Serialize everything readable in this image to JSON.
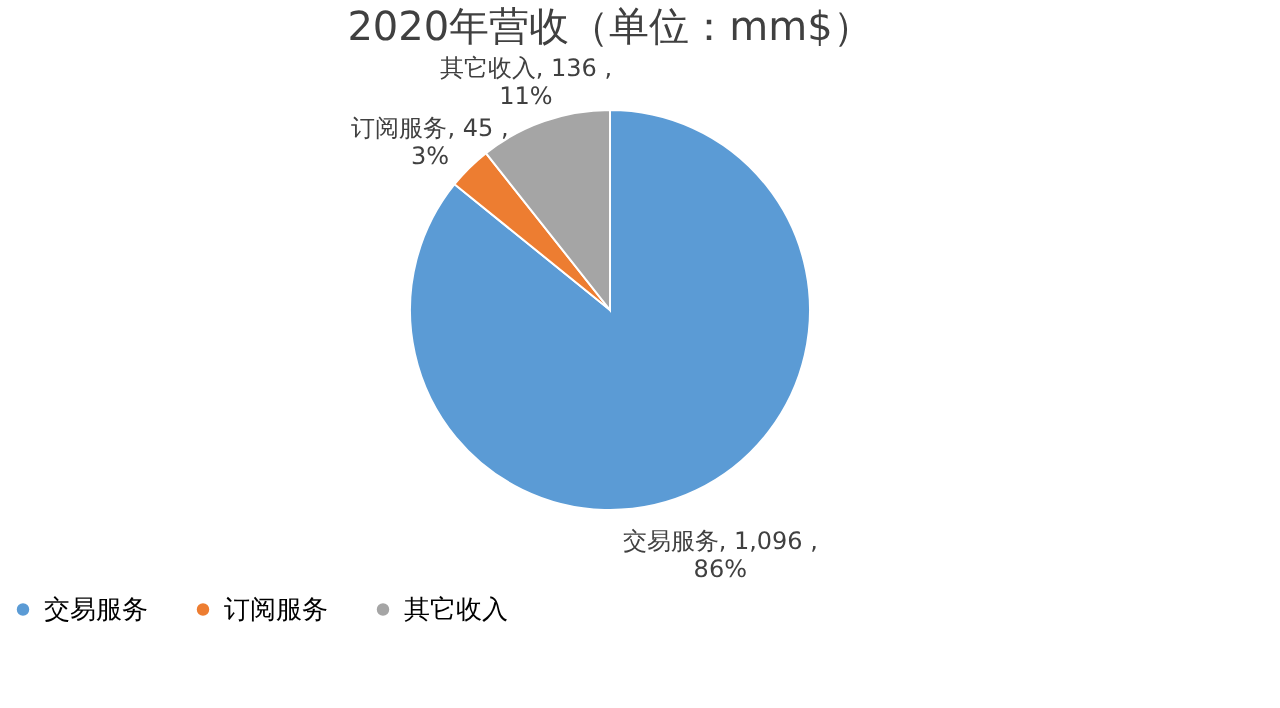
{
  "chart_data": {
    "type": "pie",
    "title": "2020年营收（单位：mm$）",
    "categories": [
      "交易服务",
      "订阅服务",
      "其它收入"
    ],
    "values": [
      1096,
      45,
      136
    ],
    "colors": [
      "#5b9bd5",
      "#ed7d31",
      "#a5a5a5"
    ],
    "value_labels": [
      "交易服务, 1,096 , 86%",
      "订阅服务, 45 , 3%",
      "其它收入, 136 , 11%"
    ],
    "legend": "bottom"
  }
}
